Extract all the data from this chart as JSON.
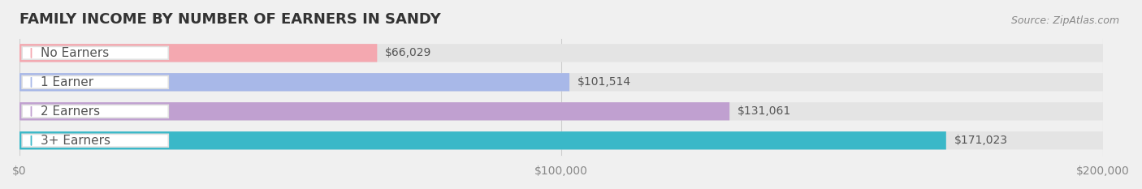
{
  "title": "FAMILY INCOME BY NUMBER OF EARNERS IN SANDY",
  "source_text": "Source: ZipAtlas.com",
  "categories": [
    "No Earners",
    "1 Earner",
    "2 Earners",
    "3+ Earners"
  ],
  "values": [
    66029,
    101514,
    131061,
    171023
  ],
  "bar_colors": [
    "#f4a8b0",
    "#a8b8e8",
    "#c0a0d0",
    "#3ab8c8"
  ],
  "label_colors": [
    "#c07880",
    "#7888c8",
    "#a878b8",
    "#2898a8"
  ],
  "background_color": "#f0f0f0",
  "bar_bg_color": "#e8e8e8",
  "xlim": [
    0,
    200000
  ],
  "xticks": [
    0,
    100000,
    200000
  ],
  "xtick_labels": [
    "$0",
    "$100,000",
    "$200,000"
  ],
  "value_labels": [
    "$66,029",
    "$101,514",
    "$131,061",
    "$171,023"
  ],
  "title_fontsize": 13,
  "tick_fontsize": 10,
  "value_fontsize": 10,
  "label_fontsize": 11
}
